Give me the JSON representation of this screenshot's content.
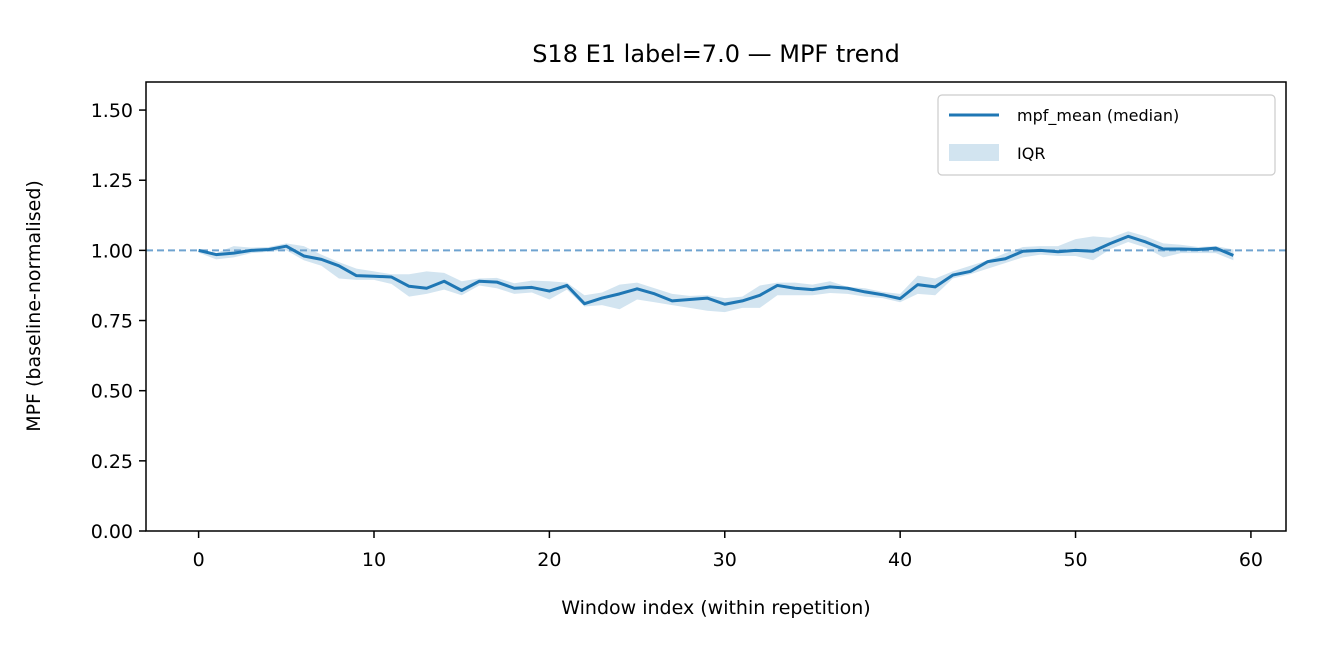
{
  "chart_data": {
    "type": "line",
    "title": "S18 E1 label=7.0 — MPF trend",
    "xlabel": "Window index (within repetition)",
    "ylabel": "MPF (baseline-normalised)",
    "xlim": [
      -3,
      62
    ],
    "ylim": [
      0,
      1.6
    ],
    "xticks": [
      0,
      10,
      20,
      30,
      40,
      50,
      60
    ],
    "xtick_labels": [
      "0",
      "10",
      "20",
      "30",
      "40",
      "50",
      "60"
    ],
    "yticks": [
      0,
      0.25,
      0.5,
      0.75,
      1.0,
      1.25,
      1.5
    ],
    "ytick_labels": [
      "0.00",
      "0.25",
      "0.50",
      "0.75",
      "1.00",
      "1.25",
      "1.50"
    ],
    "reference_line": {
      "y": 1.0,
      "style": "dashed",
      "color": "#6fa3d0"
    },
    "grid": false,
    "legend_position": "top-right",
    "series": [
      {
        "name": "mpf_mean (median)",
        "kind": "line",
        "color": "#1f77b4",
        "x": [
          0,
          1,
          2,
          3,
          4,
          5,
          6,
          7,
          8,
          9,
          10,
          11,
          12,
          13,
          14,
          15,
          16,
          17,
          18,
          19,
          20,
          21,
          22,
          23,
          24,
          25,
          26,
          27,
          28,
          29,
          30,
          31,
          32,
          33,
          34,
          35,
          36,
          37,
          38,
          39,
          40,
          41,
          42,
          43,
          44,
          45,
          46,
          47,
          48,
          49,
          50,
          51,
          52,
          53,
          54,
          55,
          56,
          57,
          58,
          59
        ],
        "y": [
          1.0,
          0.985,
          0.99,
          1.0,
          1.003,
          1.015,
          0.98,
          0.968,
          0.945,
          0.91,
          0.908,
          0.905,
          0.872,
          0.865,
          0.89,
          0.857,
          0.89,
          0.887,
          0.865,
          0.868,
          0.855,
          0.875,
          0.81,
          0.83,
          0.845,
          0.863,
          0.845,
          0.82,
          0.825,
          0.83,
          0.808,
          0.82,
          0.84,
          0.875,
          0.865,
          0.86,
          0.87,
          0.865,
          0.852,
          0.842,
          0.828,
          0.878,
          0.87,
          0.912,
          0.925,
          0.96,
          0.97,
          0.997,
          1.0,
          0.995,
          1.0,
          0.997,
          1.025,
          1.05,
          1.03,
          1.005,
          1.005,
          1.003,
          1.008,
          0.982
        ]
      },
      {
        "name": "IQR",
        "kind": "band",
        "color": "#1f77b4",
        "opacity": 0.2,
        "x": [
          0,
          1,
          2,
          3,
          4,
          5,
          6,
          7,
          8,
          9,
          10,
          11,
          12,
          13,
          14,
          15,
          16,
          17,
          18,
          19,
          20,
          21,
          22,
          23,
          24,
          25,
          26,
          27,
          28,
          29,
          30,
          31,
          32,
          33,
          34,
          35,
          36,
          37,
          38,
          39,
          40,
          41,
          42,
          43,
          44,
          45,
          46,
          47,
          48,
          49,
          50,
          51,
          52,
          53,
          54,
          55,
          56,
          57,
          58,
          59
        ],
        "low": [
          0.992,
          0.968,
          0.975,
          0.99,
          0.995,
          1.0,
          0.965,
          0.945,
          0.9,
          0.895,
          0.895,
          0.88,
          0.835,
          0.845,
          0.86,
          0.84,
          0.875,
          0.865,
          0.845,
          0.85,
          0.825,
          0.86,
          0.8,
          0.805,
          0.79,
          0.825,
          0.815,
          0.805,
          0.795,
          0.785,
          0.78,
          0.795,
          0.795,
          0.84,
          0.84,
          0.84,
          0.848,
          0.845,
          0.835,
          0.83,
          0.815,
          0.845,
          0.84,
          0.9,
          0.915,
          0.935,
          0.955,
          0.975,
          0.985,
          0.98,
          0.98,
          0.965,
          1.005,
          1.03,
          1.01,
          0.975,
          0.99,
          0.99,
          0.99,
          0.965
        ],
        "high": [
          1.005,
          0.99,
          1.015,
          1.01,
          1.012,
          1.025,
          1.015,
          0.985,
          0.958,
          0.935,
          0.925,
          0.915,
          0.915,
          0.925,
          0.92,
          0.89,
          0.9,
          0.902,
          0.883,
          0.892,
          0.89,
          0.885,
          0.84,
          0.85,
          0.878,
          0.885,
          0.865,
          0.845,
          0.838,
          0.84,
          0.83,
          0.835,
          0.875,
          0.885,
          0.885,
          0.878,
          0.89,
          0.87,
          0.865,
          0.852,
          0.845,
          0.91,
          0.9,
          0.925,
          0.945,
          0.965,
          0.99,
          1.012,
          1.015,
          1.015,
          1.04,
          1.05,
          1.045,
          1.068,
          1.05,
          1.025,
          1.02,
          1.012,
          1.015,
          1.003
        ]
      }
    ]
  }
}
